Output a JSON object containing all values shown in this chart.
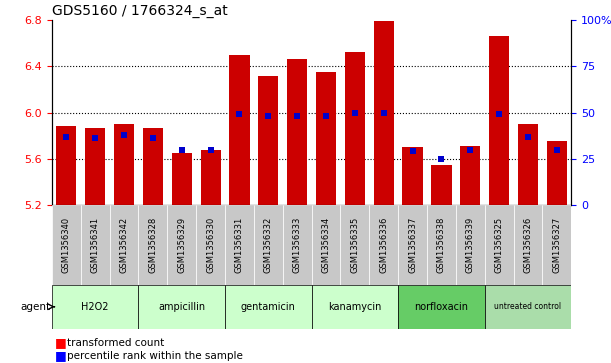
{
  "title": "GDS5160 / 1766324_s_at",
  "samples": [
    "GSM1356340",
    "GSM1356341",
    "GSM1356342",
    "GSM1356328",
    "GSM1356329",
    "GSM1356330",
    "GSM1356331",
    "GSM1356332",
    "GSM1356333",
    "GSM1356334",
    "GSM1356335",
    "GSM1356336",
    "GSM1356337",
    "GSM1356338",
    "GSM1356339",
    "GSM1356325",
    "GSM1356326",
    "GSM1356327"
  ],
  "bar_values": [
    5.88,
    5.87,
    5.9,
    5.87,
    5.65,
    5.68,
    6.5,
    6.32,
    6.46,
    6.35,
    6.52,
    6.79,
    5.7,
    5.55,
    5.71,
    6.66,
    5.9,
    5.75
  ],
  "percentile_values": [
    37,
    36,
    38,
    36,
    30,
    30,
    49,
    48,
    48,
    48,
    50,
    50,
    29,
    25,
    30,
    49,
    37,
    30
  ],
  "bar_bottom": 5.2,
  "ylim_left": [
    5.2,
    6.8
  ],
  "ylim_right": [
    0,
    100
  ],
  "yticks_left": [
    5.2,
    5.6,
    6.0,
    6.4,
    6.8
  ],
  "yticks_right": [
    0,
    25,
    50,
    75,
    100
  ],
  "bar_color": "#CC0000",
  "dot_color": "#0000CC",
  "grid_values": [
    5.6,
    6.0,
    6.4
  ],
  "agent_groups": [
    {
      "label": "H2O2",
      "start": 0,
      "end": 3,
      "color": "#CCFFCC"
    },
    {
      "label": "ampicillin",
      "start": 3,
      "end": 6,
      "color": "#CCFFCC"
    },
    {
      "label": "gentamicin",
      "start": 6,
      "end": 9,
      "color": "#CCFFCC"
    },
    {
      "label": "kanamycin",
      "start": 9,
      "end": 12,
      "color": "#CCFFCC"
    },
    {
      "label": "norfloxacin",
      "start": 12,
      "end": 15,
      "color": "#66CC66"
    },
    {
      "label": "untreated control",
      "start": 15,
      "end": 18,
      "color": "#AADDAA"
    }
  ],
  "legend_items": [
    {
      "label": "transformed count",
      "color": "#CC0000"
    },
    {
      "label": "percentile rank within the sample",
      "color": "#0000CC"
    }
  ],
  "xlabel": "agent",
  "tick_bg_color": "#CCCCCC",
  "plot_bg_color": "#FFFFFF"
}
